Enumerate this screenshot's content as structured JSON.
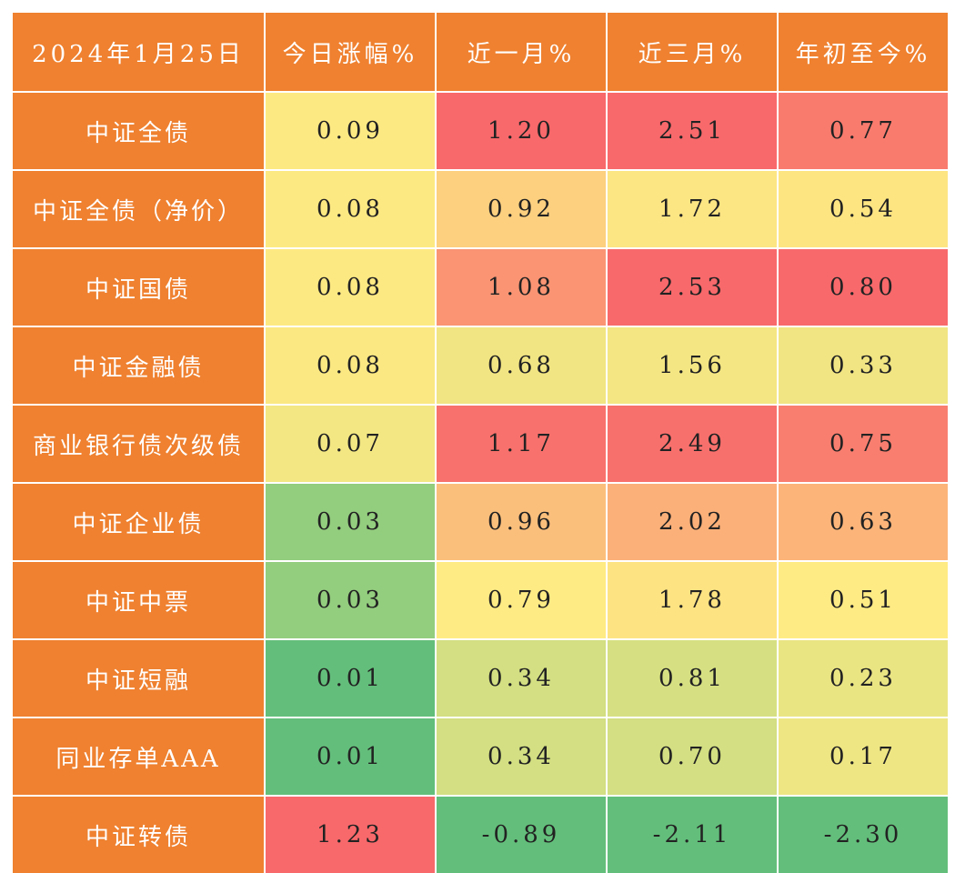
{
  "table": {
    "header": [
      "2024年1月25日",
      "今日涨幅%",
      "近一月%",
      "近三月%",
      "年初至今%"
    ],
    "rows": [
      [
        "中证全债",
        "0.09",
        "1.20",
        "2.51",
        "0.77"
      ],
      [
        "中证全债（净价）",
        "0.08",
        "0.92",
        "1.72",
        "0.54"
      ],
      [
        "中证国债",
        "0.08",
        "1.08",
        "2.53",
        "0.80"
      ],
      [
        "中证金融债",
        "0.08",
        "0.68",
        "1.56",
        "0.33"
      ],
      [
        "商业银行债次级债",
        "0.07",
        "1.17",
        "2.49",
        "0.75"
      ],
      [
        "中证企业债",
        "0.03",
        "0.96",
        "2.02",
        "0.63"
      ],
      [
        "中证中票",
        "0.03",
        "0.79",
        "1.78",
        "0.51"
      ],
      [
        "中证短融",
        "0.01",
        "0.34",
        "0.81",
        "0.23"
      ],
      [
        "同业存单AAA",
        "0.01",
        "0.34",
        "0.70",
        "0.17"
      ],
      [
        "中证转债",
        "1.23",
        "-0.89",
        "-2.11",
        "-2.30"
      ]
    ],
    "header_color": "#EF8130",
    "cell_colors": [
      [
        "#FDE982",
        "#F8696B",
        "#F8696B",
        "#F97B6E"
      ],
      [
        "#FDE982",
        "#FCD07F",
        "#FCE583",
        "#FDE582"
      ],
      [
        "#FDE982",
        "#FA9473",
        "#F8696B",
        "#F8696B"
      ],
      [
        "#FBE882",
        "#F1E583",
        "#F4E683",
        "#F1E583"
      ],
      [
        "#F3E783",
        "#F8716C",
        "#F8706C",
        "#F97E6F"
      ],
      [
        "#93CD7E",
        "#FBBF7C",
        "#FBB079",
        "#FCB479"
      ],
      [
        "#93CD7E",
        "#FFEB84",
        "#FDE382",
        "#FFEB84"
      ],
      [
        "#63BE7B",
        "#D3DF82",
        "#D6E082",
        "#EAE583"
      ],
      [
        "#63BE7B",
        "#D3DF82",
        "#D3DF82",
        "#EEE683"
      ],
      [
        "#F8696B",
        "#63BE7B",
        "#63BE7B",
        "#63BE7B"
      ]
    ]
  }
}
